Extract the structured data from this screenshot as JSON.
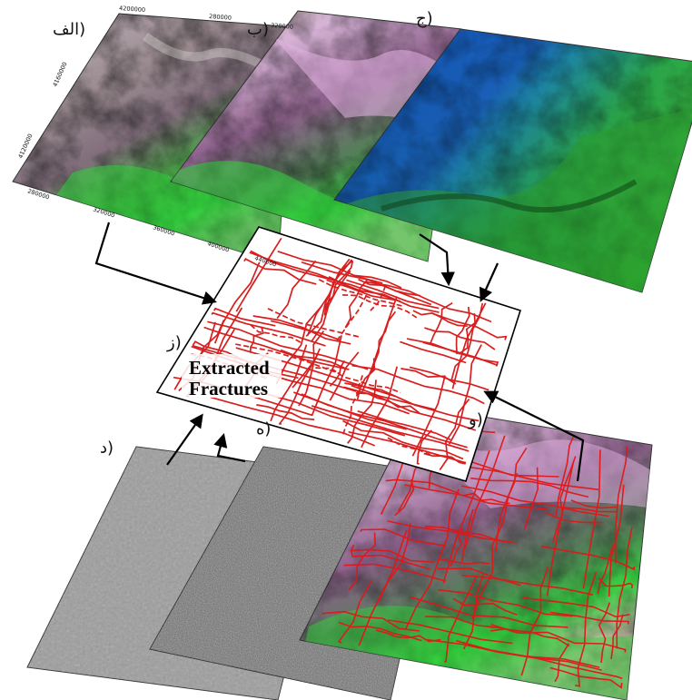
{
  "labels": {
    "a": "(الف",
    "b": "(ب",
    "c": "(ج",
    "d": "(د",
    "e": "(ه",
    "f": "(و",
    "g": "(ز"
  },
  "center": {
    "line1": "Extracted",
    "line2": "Fractures"
  },
  "coords": {
    "north_top": "4200000",
    "north_mid": "4160000",
    "north_low": "4120000",
    "east_top_1": "280000",
    "east_top_2": "320000",
    "east_bot_1": "280000",
    "east_bot_2": "320000",
    "east_bot_3": "360000",
    "east_bot_4": "400000",
    "east_bot_5": "440000"
  },
  "colors": {
    "fracture": "#d81e1e",
    "arrow": "#000000",
    "green": "#2fd13a",
    "pink": "#c78ec8",
    "blue": "#1459b8"
  }
}
